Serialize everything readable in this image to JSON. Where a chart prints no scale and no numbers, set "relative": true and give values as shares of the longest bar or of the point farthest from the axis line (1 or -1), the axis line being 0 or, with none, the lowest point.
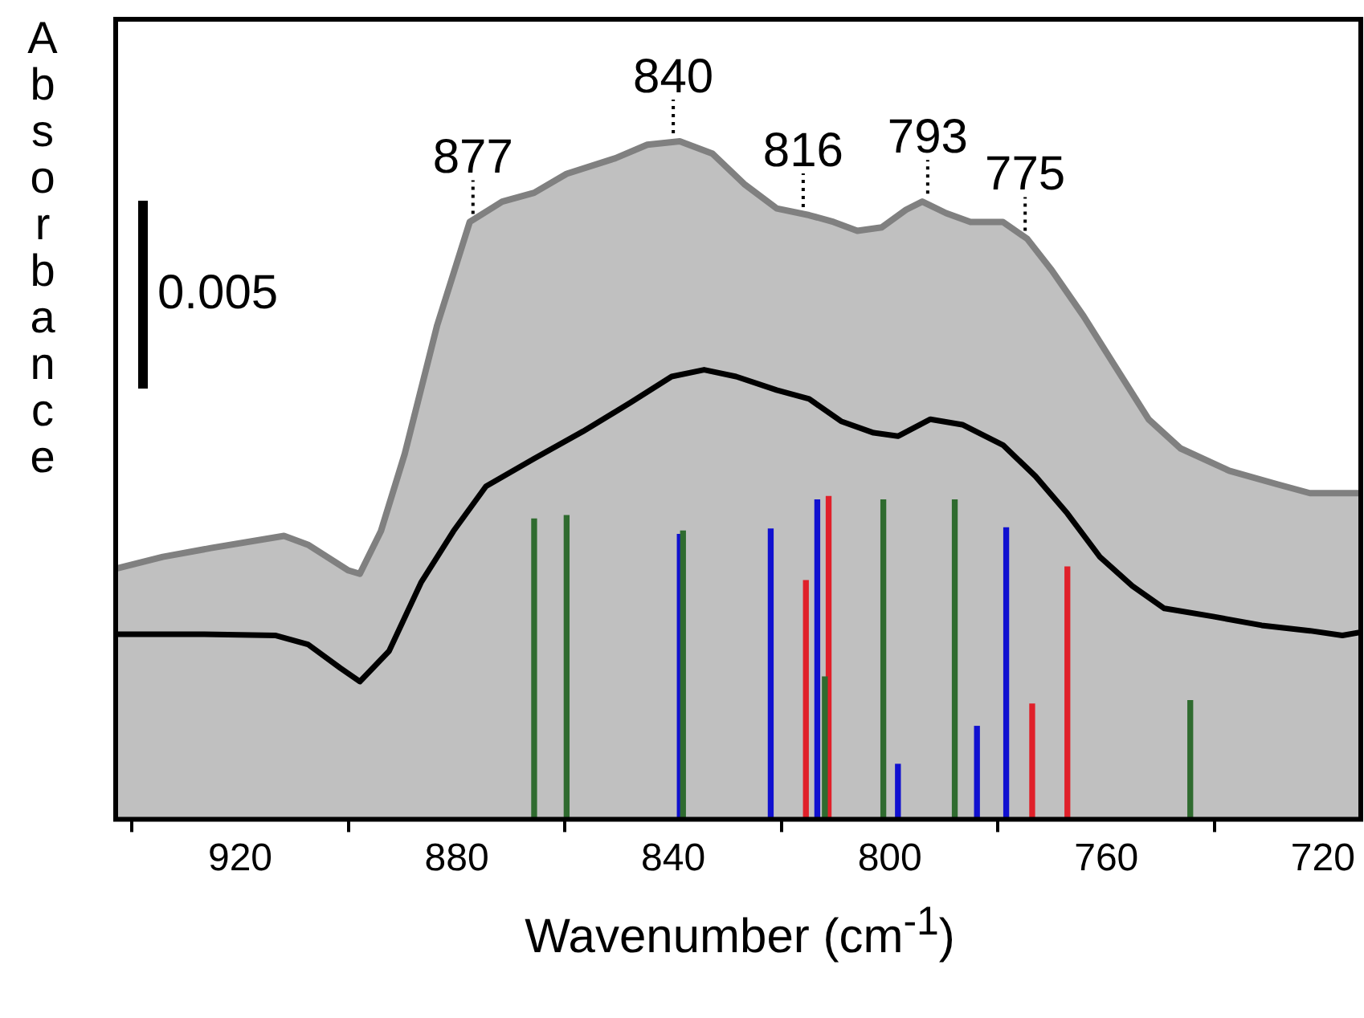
{
  "chart_data": {
    "type": "line",
    "xlabel": "Wavenumber (cm$^{-1}$)",
    "ylabel": "Absorbance",
    "relative": true,
    "xlim": [
      943,
      713
    ],
    "xticks": [
      920,
      880,
      840,
      800,
      760,
      720
    ],
    "series": [
      {
        "type": "area",
        "color": "#808080",
        "x": [
          942.7,
          934.3,
          925.4,
          911.9,
          907.5,
          900.0,
          897.9,
          894.0,
          889.6,
          883.6,
          877.6,
          871.6,
          865.7,
          859.7,
          850.7,
          844.8,
          838.8,
          832.8,
          826.9,
          820.9,
          814.9,
          810.4,
          806.0,
          801.5,
          797.0,
          794.0,
          789.6,
          785.1,
          779.1,
          774.6,
          770.1,
          764.2,
          758.2,
          752.2,
          746.3,
          737.3,
          728.4,
          722.4,
          713
        ],
        "values": [
          0.37,
          0.387,
          0.4,
          0.418,
          0.405,
          0.367,
          0.362,
          0.425,
          0.539,
          0.729,
          0.881,
          0.911,
          0.924,
          0.952,
          0.975,
          0.995,
          1,
          0.982,
          0.937,
          0.901,
          0.891,
          0.881,
          0.868,
          0.873,
          0.899,
          0.911,
          0.894,
          0.881,
          0.881,
          0.856,
          0.81,
          0.742,
          0.666,
          0.59,
          0.547,
          0.514,
          0.494,
          0.481,
          0.481
        ]
      },
      {
        "type": "line",
        "color": "#000000",
        "x": [
          942.7,
          928.4,
          913.4,
          907.5,
          901.5,
          897.9,
          892.5,
          886.6,
          880.6,
          874.6,
          865.7,
          856.7,
          847.8,
          840.3,
          834.3,
          828.4,
          820.9,
          814.9,
          809.0,
          803.0,
          798.5,
          792.5,
          786.6,
          779.1,
          773.1,
          767.2,
          761.2,
          755.2,
          749.3,
          740.3,
          731.3,
          722.4,
          716.4,
          713
        ],
        "values": [
          0.273,
          0.273,
          0.271,
          0.258,
          0.223,
          0.203,
          0.248,
          0.349,
          0.425,
          0.491,
          0.532,
          0.572,
          0.615,
          0.653,
          0.663,
          0.653,
          0.633,
          0.62,
          0.587,
          0.57,
          0.565,
          0.59,
          0.582,
          0.552,
          0.506,
          0.451,
          0.387,
          0.344,
          0.311,
          0.299,
          0.286,
          0.278,
          0.271,
          0.276
        ]
      },
      {
        "type": "bar",
        "color": "#2f6b2f",
        "x": [
          865.7,
          859.7,
          838.2,
          812.0,
          801.2,
          788.0,
          744.5
        ],
        "values": [
          0.443,
          0.448,
          0.425,
          0.21,
          0.471,
          0.471,
          0.175
        ]
      },
      {
        "type": "bar",
        "color": "#1010d0",
        "x": [
          838.8,
          822.0,
          813.4,
          798.5,
          783.9,
          778.5
        ],
        "values": [
          0.42,
          0.428,
          0.471,
          0.081,
          0.137,
          0.43
        ]
      },
      {
        "type": "bar",
        "color": "#e0202a",
        "x": [
          815.5,
          811.3,
          773.7,
          767.2
        ],
        "values": [
          0.352,
          0.476,
          0.17,
          0.372
        ]
      }
    ],
    "annotations": [
      {
        "text": "877",
        "x": 877,
        "y": 0.881
      },
      {
        "text": "840",
        "x": 840,
        "y": 1
      },
      {
        "text": "816",
        "x": 816,
        "y": 0.891
      },
      {
        "text": "793",
        "x": 793,
        "y": 0.911
      },
      {
        "text": "775",
        "x": 775,
        "y": 0.856
      },
      "0.005"
    ]
  }
}
